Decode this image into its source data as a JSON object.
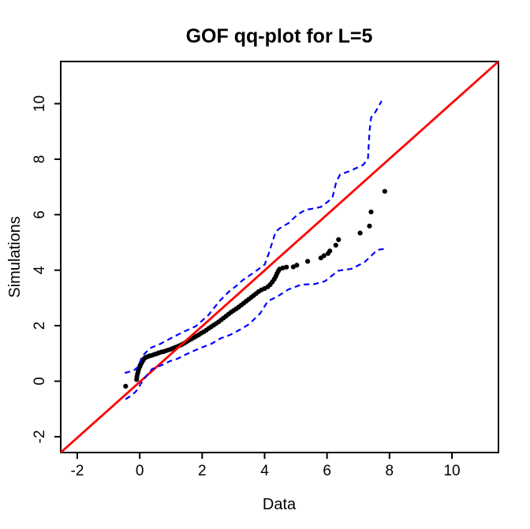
{
  "chart_data": {
    "type": "scatter",
    "title": "GOF qq-plot for L=5",
    "xlabel": "Data",
    "ylabel": "Simulations",
    "xlim": [
      -2.53,
      11.49
    ],
    "ylim": [
      -2.57,
      11.52
    ],
    "xticks": [
      -2,
      0,
      2,
      4,
      6,
      8,
      10
    ],
    "yticks": [
      -2,
      0,
      2,
      4,
      6,
      8,
      10
    ],
    "grid": false,
    "legend": "none",
    "colors": {
      "points": "#000000",
      "reference_line": "#FF0000",
      "envelope": "#0000FF",
      "frame": "#000000",
      "background": "#FFFFFF"
    },
    "series": [
      {
        "name": "qq-points",
        "kind": "points",
        "color": "#000000",
        "marker": "filled-circle",
        "points": [
          [
            -0.45,
            -0.18
          ],
          [
            -0.1,
            0.06
          ],
          [
            -0.09,
            0.16
          ],
          [
            -0.07,
            0.26
          ],
          [
            -0.05,
            0.36
          ],
          [
            -0.03,
            0.44
          ],
          [
            0.0,
            0.52
          ],
          [
            0.02,
            0.58
          ],
          [
            0.05,
            0.64
          ],
          [
            0.08,
            0.7
          ],
          [
            0.11,
            0.76
          ],
          [
            0.14,
            0.81
          ],
          [
            0.18,
            0.85
          ],
          [
            0.24,
            0.88
          ],
          [
            0.31,
            0.91
          ],
          [
            0.38,
            0.93
          ],
          [
            0.46,
            0.96
          ],
          [
            0.54,
            0.99
          ],
          [
            0.61,
            1.02
          ],
          [
            0.69,
            1.05
          ],
          [
            0.77,
            1.07
          ],
          [
            0.85,
            1.1
          ],
          [
            0.93,
            1.13
          ],
          [
            1.01,
            1.16
          ],
          [
            1.09,
            1.2
          ],
          [
            1.17,
            1.23
          ],
          [
            1.25,
            1.27
          ],
          [
            1.33,
            1.31
          ],
          [
            1.41,
            1.36
          ],
          [
            1.49,
            1.41
          ],
          [
            1.57,
            1.47
          ],
          [
            1.65,
            1.52
          ],
          [
            1.73,
            1.57
          ],
          [
            1.81,
            1.62
          ],
          [
            1.89,
            1.67
          ],
          [
            1.97,
            1.73
          ],
          [
            2.05,
            1.78
          ],
          [
            2.13,
            1.84
          ],
          [
            2.21,
            1.9
          ],
          [
            2.29,
            1.96
          ],
          [
            2.37,
            2.02
          ],
          [
            2.45,
            2.08
          ],
          [
            2.53,
            2.14
          ],
          [
            2.61,
            2.21
          ],
          [
            2.69,
            2.28
          ],
          [
            2.77,
            2.35
          ],
          [
            2.85,
            2.42
          ],
          [
            2.93,
            2.49
          ],
          [
            3.01,
            2.55
          ],
          [
            3.09,
            2.61
          ],
          [
            3.17,
            2.67
          ],
          [
            3.25,
            2.74
          ],
          [
            3.33,
            2.81
          ],
          [
            3.41,
            2.88
          ],
          [
            3.49,
            2.95
          ],
          [
            3.57,
            3.02
          ],
          [
            3.65,
            3.09
          ],
          [
            3.73,
            3.16
          ],
          [
            3.81,
            3.23
          ],
          [
            3.9,
            3.29
          ],
          [
            4.0,
            3.34
          ],
          [
            4.1,
            3.4
          ],
          [
            4.18,
            3.48
          ],
          [
            4.25,
            3.58
          ],
          [
            4.31,
            3.68
          ],
          [
            4.36,
            3.78
          ],
          [
            4.4,
            3.88
          ],
          [
            4.44,
            3.97
          ],
          [
            4.48,
            4.04
          ],
          [
            4.58,
            4.08
          ],
          [
            4.7,
            4.11
          ],
          [
            4.92,
            4.12
          ],
          [
            5.03,
            4.18
          ],
          [
            5.38,
            4.32
          ],
          [
            5.8,
            4.44
          ],
          [
            5.9,
            4.52
          ],
          [
            6.03,
            4.6
          ],
          [
            6.09,
            4.69
          ],
          [
            6.28,
            4.9
          ],
          [
            6.37,
            5.1
          ],
          [
            7.06,
            5.34
          ],
          [
            7.36,
            5.59
          ],
          [
            7.41,
            6.1
          ],
          [
            7.85,
            6.84
          ]
        ]
      },
      {
        "name": "reference-line",
        "kind": "line",
        "color": "#FF0000",
        "style": "solid",
        "points": [
          [
            -2.53,
            -2.57
          ],
          [
            11.49,
            11.52
          ]
        ]
      },
      {
        "name": "upper-envelope",
        "kind": "line",
        "color": "#0000FF",
        "style": "dashed",
        "points": [
          [
            -0.48,
            0.3
          ],
          [
            -0.2,
            0.38
          ],
          [
            -0.05,
            0.52
          ],
          [
            0.08,
            0.9
          ],
          [
            0.33,
            1.19
          ],
          [
            0.65,
            1.34
          ],
          [
            1.0,
            1.55
          ],
          [
            1.4,
            1.78
          ],
          [
            1.8,
            1.98
          ],
          [
            2.2,
            2.38
          ],
          [
            2.55,
            2.88
          ],
          [
            2.85,
            3.22
          ],
          [
            3.11,
            3.45
          ],
          [
            3.31,
            3.65
          ],
          [
            3.61,
            3.88
          ],
          [
            4.0,
            4.2
          ],
          [
            4.15,
            4.65
          ],
          [
            4.35,
            5.38
          ],
          [
            4.5,
            5.52
          ],
          [
            4.77,
            5.7
          ],
          [
            5.05,
            6.0
          ],
          [
            5.3,
            6.17
          ],
          [
            5.55,
            6.22
          ],
          [
            5.8,
            6.28
          ],
          [
            6.06,
            6.5
          ],
          [
            6.18,
            6.65
          ],
          [
            6.3,
            7.2
          ],
          [
            6.42,
            7.45
          ],
          [
            6.73,
            7.57
          ],
          [
            7.16,
            7.8
          ],
          [
            7.31,
            8.0
          ],
          [
            7.36,
            9.0
          ],
          [
            7.41,
            9.5
          ],
          [
            7.55,
            9.7
          ],
          [
            7.75,
            10.1
          ]
        ]
      },
      {
        "name": "lower-envelope",
        "kind": "line",
        "color": "#0000FF",
        "style": "dashed",
        "points": [
          [
            -0.45,
            -0.65
          ],
          [
            -0.33,
            -0.56
          ],
          [
            -0.15,
            -0.4
          ],
          [
            -0.05,
            -0.27
          ],
          [
            0.04,
            -0.08
          ],
          [
            0.13,
            0.06
          ],
          [
            0.28,
            0.28
          ],
          [
            0.4,
            0.44
          ],
          [
            0.83,
            0.64
          ],
          [
            0.96,
            0.72
          ],
          [
            1.21,
            0.81
          ],
          [
            1.51,
            0.98
          ],
          [
            1.75,
            1.1
          ],
          [
            2.0,
            1.22
          ],
          [
            2.3,
            1.35
          ],
          [
            2.6,
            1.55
          ],
          [
            2.9,
            1.67
          ],
          [
            3.2,
            1.85
          ],
          [
            3.5,
            2.05
          ],
          [
            3.86,
            2.45
          ],
          [
            4.1,
            2.88
          ],
          [
            4.42,
            3.06
          ],
          [
            4.77,
            3.31
          ],
          [
            5.18,
            3.48
          ],
          [
            5.6,
            3.5
          ],
          [
            5.93,
            3.6
          ],
          [
            6.36,
            3.98
          ],
          [
            6.78,
            4.05
          ],
          [
            7.19,
            4.28
          ],
          [
            7.61,
            4.73
          ],
          [
            7.9,
            4.78
          ]
        ]
      }
    ]
  }
}
